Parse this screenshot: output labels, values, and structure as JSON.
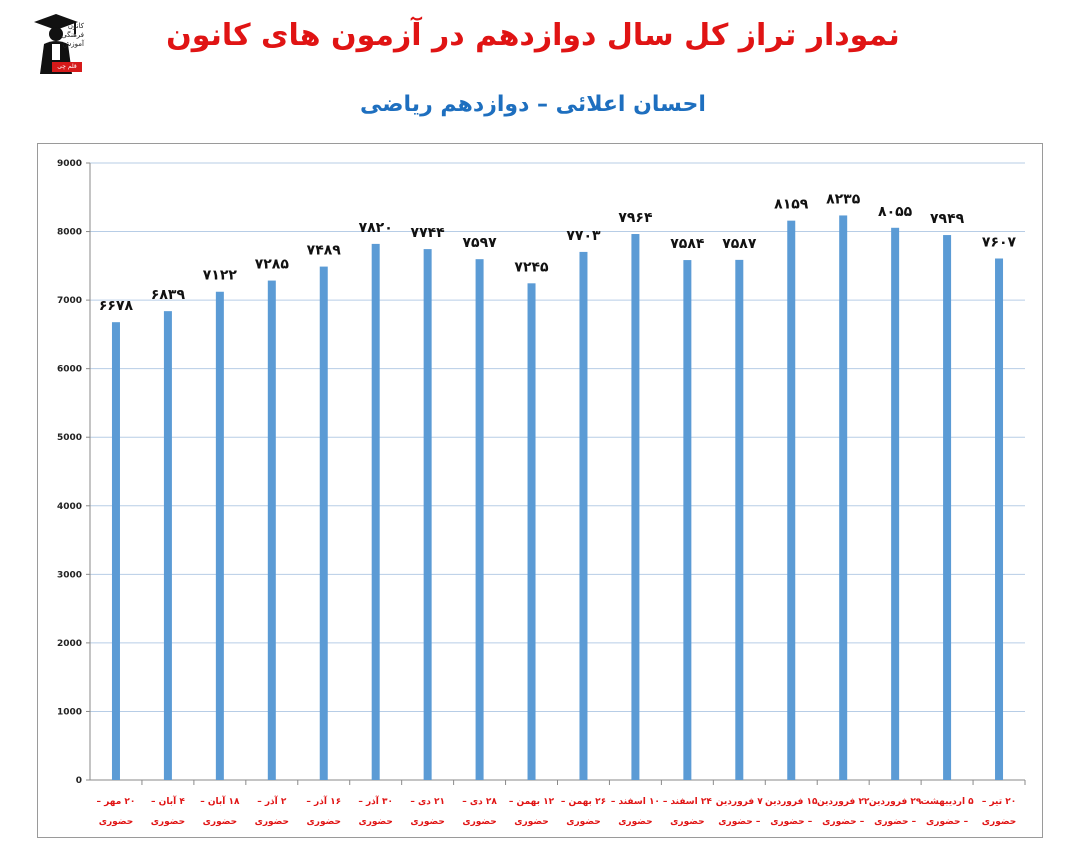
{
  "header": {
    "title": "نمودار تراز کل سال دوازدهم در آزمون های کانون",
    "subtitle": "احسان اعلائی – دوازدهم ریاضی"
  },
  "logo": {
    "lines": [
      "کانون",
      "فرهنگی",
      "آموزش"
    ],
    "badge": "قلم چی"
  },
  "colors": {
    "title": "#e01414",
    "subtitle": "#1e6fbf",
    "bar": "#5b9bd5",
    "grid": "#b7cde6",
    "x_labels": "#e01414"
  },
  "chart_data": {
    "type": "bar",
    "title": "نمودار تراز کل سال دوازدهم در آزمون های کانون",
    "subtitle": "احسان اعلائی – دوازدهم ریاضی",
    "ylim": [
      0,
      9000
    ],
    "ytick_labels": [
      "0",
      "1000",
      "2000",
      "3000",
      "4000",
      "5000",
      "6000",
      "7000",
      "8000",
      "9000"
    ],
    "grid": true,
    "legend": "none",
    "categories": [
      [
        "۲۰ مهر –",
        "حضوری"
      ],
      [
        "۴ آبان –",
        "حضوری"
      ],
      [
        "۱۸ آبان –",
        "حضوری"
      ],
      [
        "۲ آذر –",
        "حضوری"
      ],
      [
        "۱۶ آذر –",
        "حضوری"
      ],
      [
        "۳۰ آذر –",
        "حضوری"
      ],
      [
        "۲۱ دی –",
        "حضوری"
      ],
      [
        "۲۸ دی –",
        "حضوری"
      ],
      [
        "۱۲ بهمن –",
        "حضوری"
      ],
      [
        "۲۶ بهمن –",
        "حضوری"
      ],
      [
        "۱۰ اسفند –",
        "حضوری"
      ],
      [
        "۲۴ اسفند –",
        "حضوری"
      ],
      [
        "۷ فروردین",
        "– حضوری"
      ],
      [
        "۱۵ فروردین",
        "– حضوری"
      ],
      [
        "۲۲ فروردین",
        "– حضوری"
      ],
      [
        "۲۹ فروردین",
        "– حضوری"
      ],
      [
        "۵ اردیبهشت",
        "– حضوری"
      ],
      [
        "۲۰ تیر –",
        "حضوری"
      ]
    ],
    "values": [
      6678,
      6839,
      7122,
      7285,
      7489,
      7820,
      7744,
      7597,
      7245,
      7703,
      7964,
      7584,
      7587,
      8159,
      8235,
      8055,
      7949,
      7607
    ],
    "data_labels": [
      "۶۶۷۸",
      "۶۸۳۹",
      "۷۱۲۲",
      "۷۲۸۵",
      "۷۴۸۹",
      "۷۸۲۰",
      "۷۷۴۴",
      "۷۵۹۷",
      "۷۲۴۵",
      "۷۷۰۳",
      "۷۹۶۴",
      "۷۵۸۴",
      "۷۵۸۷",
      "۸۱۵۹",
      "۸۲۳۵",
      "۸۰۵۵",
      "۷۹۴۹",
      "۷۶۰۷"
    ]
  }
}
